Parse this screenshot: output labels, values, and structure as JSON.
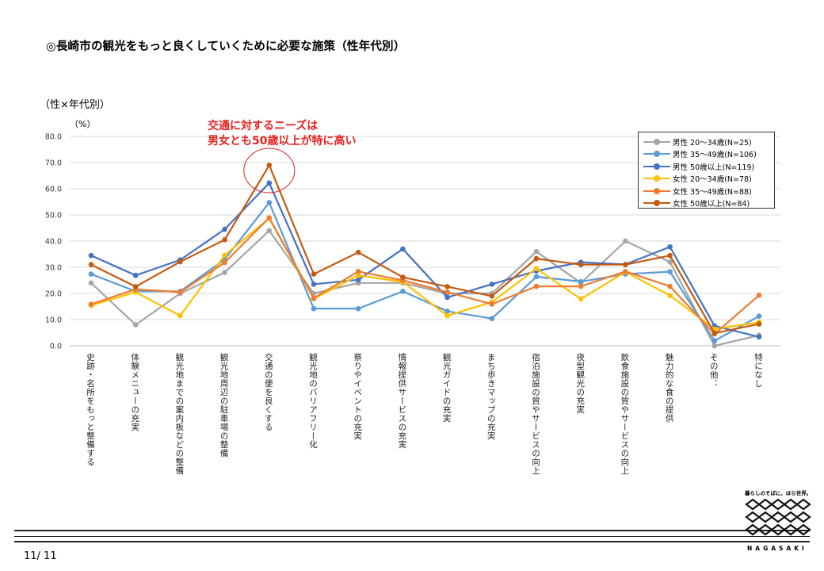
{
  "slide": {
    "title": "◎長崎市の観光をもっと良くしていくために必要な施策（性年代別）",
    "page": "11/ 11"
  },
  "chart_heading": "（性×年代別）",
  "unit_label": "（%）",
  "annotation": {
    "line1": "交通に対するニーズは",
    "line2": "男女とも50歳以上が特に高い",
    "color": "#e8211d"
  },
  "logo": {
    "tagline": "暮らしのそばに、ほら世界。",
    "name": "NAGASAKI"
  },
  "chart_data": {
    "type": "line",
    "title": "（性×年代別）",
    "ylabel": "（%）",
    "ylim": [
      0,
      80
    ],
    "yticks": [
      "0.0",
      "10.0",
      "20.0",
      "30.0",
      "40.0",
      "50.0",
      "60.0",
      "70.0",
      "80.0"
    ],
    "grid": true,
    "legend_position": "top-right",
    "categories": [
      "史跡・名所をもっと整備する",
      "体験メニューの充実",
      "観光地までの案内板などの整備",
      "観光地周辺の駐車場の整備",
      "交通の便を良くする",
      "観光地のバリアフリー化",
      "祭りやイベントの充実",
      "情報提供サービスの充実",
      "観光ガイドの充実",
      "まち歩きマップの充実",
      "宿泊施設の質やサービスの向上",
      "夜型観光の充実",
      "飲食施設の質やサービスの向上",
      "魅力的な食の提供",
      "その他：",
      "特になし"
    ],
    "series": [
      {
        "name": "男性 20～34歳(N=25)",
        "color": "#a5a5a5",
        "values": [
          24.0,
          8.0,
          20.0,
          28.0,
          44.0,
          20.0,
          24.0,
          24.0,
          20.0,
          20.0,
          36.0,
          24.0,
          40.0,
          32.0,
          0.0,
          4.0
        ]
      },
      {
        "name": "男性 35～49歳(N=106)",
        "color": "#5b9bd5",
        "values": [
          27.4,
          20.8,
          20.8,
          33.0,
          54.7,
          14.2,
          14.2,
          20.8,
          13.2,
          10.4,
          26.4,
          24.5,
          27.4,
          28.3,
          1.9,
          11.3
        ]
      },
      {
        "name": "男性 50歳以上(N=119)",
        "color": "#4472c4",
        "values": [
          34.5,
          26.9,
          32.8,
          44.5,
          62.2,
          23.5,
          25.2,
          37.0,
          18.5,
          23.5,
          28.6,
          31.9,
          31.1,
          37.8,
          7.6,
          3.4
        ]
      },
      {
        "name": "女性 20～34歳(N=78)",
        "color": "#ffc000",
        "values": [
          15.4,
          20.5,
          11.5,
          34.6,
          48.7,
          17.9,
          26.9,
          24.4,
          11.5,
          16.7,
          29.5,
          17.9,
          28.2,
          19.2,
          6.4,
          9.0
        ]
      },
      {
        "name": "女性 35～49歳(N=88)",
        "color": "#ed7d31",
        "values": [
          15.9,
          21.6,
          20.5,
          31.8,
          48.9,
          18.2,
          28.4,
          25.0,
          20.5,
          15.9,
          22.7,
          22.7,
          28.4,
          22.7,
          4.5,
          19.3
        ]
      },
      {
        "name": "女性 50歳以上(N=84)",
        "color": "#c55a11",
        "values": [
          31.0,
          22.6,
          32.1,
          40.5,
          69.0,
          27.4,
          35.7,
          26.2,
          22.6,
          19.0,
          33.3,
          31.0,
          31.0,
          34.5,
          4.8,
          8.3
        ]
      }
    ]
  }
}
